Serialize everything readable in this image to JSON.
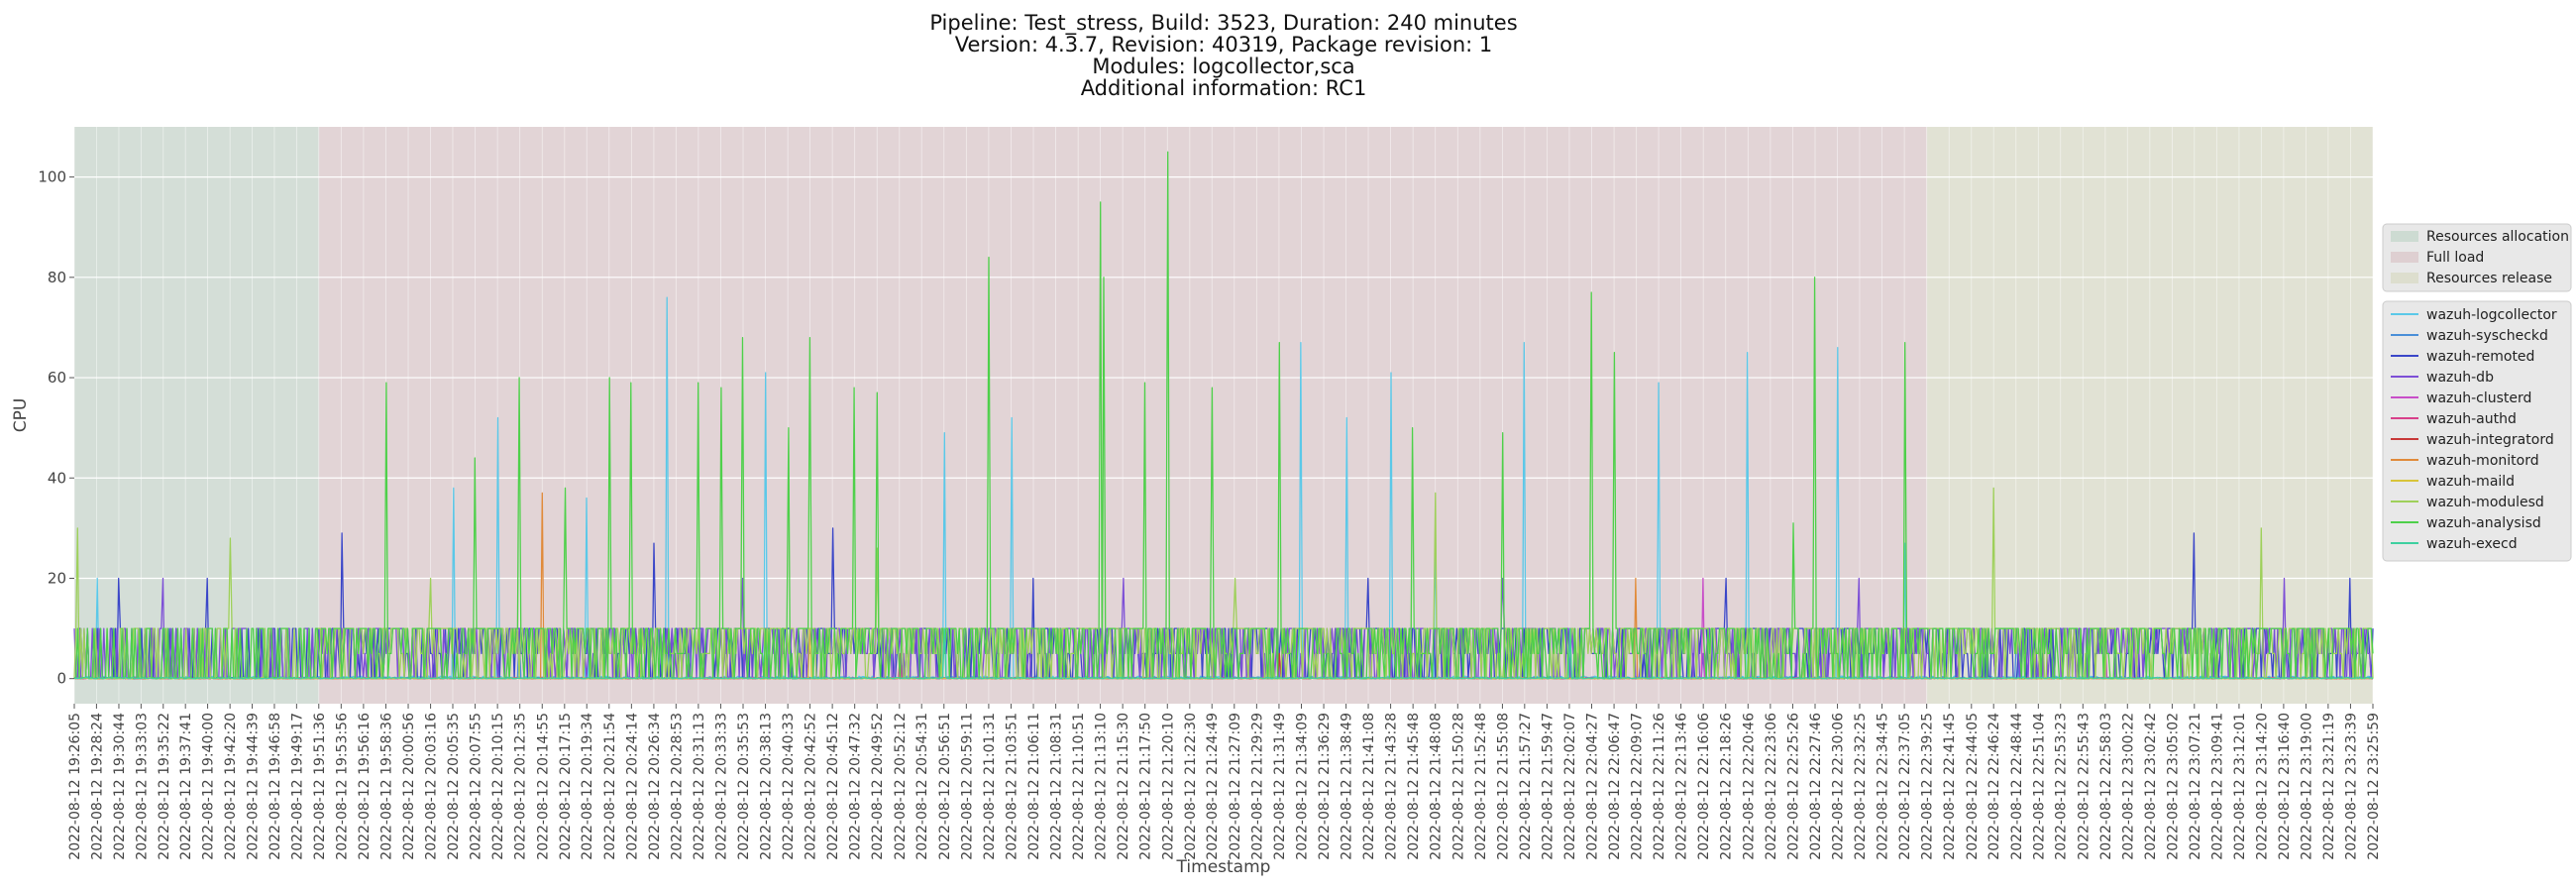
{
  "chart_data": {
    "type": "line",
    "title_lines": [
      "Pipeline: Test_stress, Build: 3523, Duration: 240 minutes",
      "Version: 4.3.7, Revision: 40319, Package revision: 1",
      "Modules: logcollector,sca",
      "Additional information: RC1"
    ],
    "xlabel": "Timestamp",
    "ylabel": "CPU",
    "ylim": [
      -5,
      110
    ],
    "yticks": [
      0,
      20,
      40,
      60,
      80,
      100
    ],
    "grid": true,
    "legend_placement": "right",
    "x_tick_labels": [
      "2022-08-12 19:26:05",
      "2022-08-12 19:28:24",
      "2022-08-12 19:30:44",
      "2022-08-12 19:33:03",
      "2022-08-12 19:35:22",
      "2022-08-12 19:37:41",
      "2022-08-12 19:40:00",
      "2022-08-12 19:42:20",
      "2022-08-12 19:44:39",
      "2022-08-12 19:46:58",
      "2022-08-12 19:49:17",
      "2022-08-12 19:51:36",
      "2022-08-12 19:53:56",
      "2022-08-12 19:56:16",
      "2022-08-12 19:58:36",
      "2022-08-12 20:00:56",
      "2022-08-12 20:03:16",
      "2022-08-12 20:05:35",
      "2022-08-12 20:07:55",
      "2022-08-12 20:10:15",
      "2022-08-12 20:12:35",
      "2022-08-12 20:14:55",
      "2022-08-12 20:17:15",
      "2022-08-12 20:19:34",
      "2022-08-12 20:21:54",
      "2022-08-12 20:24:14",
      "2022-08-12 20:26:34",
      "2022-08-12 20:28:53",
      "2022-08-12 20:31:13",
      "2022-08-12 20:33:33",
      "2022-08-12 20:35:53",
      "2022-08-12 20:38:13",
      "2022-08-12 20:40:33",
      "2022-08-12 20:42:52",
      "2022-08-12 20:45:12",
      "2022-08-12 20:47:32",
      "2022-08-12 20:49:52",
      "2022-08-12 20:52:12",
      "2022-08-12 20:54:31",
      "2022-08-12 20:56:51",
      "2022-08-12 20:59:11",
      "2022-08-12 21:01:31",
      "2022-08-12 21:03:51",
      "2022-08-12 21:06:11",
      "2022-08-12 21:08:31",
      "2022-08-12 21:10:51",
      "2022-08-12 21:13:10",
      "2022-08-12 21:15:30",
      "2022-08-12 21:17:50",
      "2022-08-12 21:20:10",
      "2022-08-12 21:22:30",
      "2022-08-12 21:24:49",
      "2022-08-12 21:27:09",
      "2022-08-12 21:29:29",
      "2022-08-12 21:31:49",
      "2022-08-12 21:34:09",
      "2022-08-12 21:36:29",
      "2022-08-12 21:38:49",
      "2022-08-12 21:41:08",
      "2022-08-12 21:43:28",
      "2022-08-12 21:45:48",
      "2022-08-12 21:48:08",
      "2022-08-12 21:50:28",
      "2022-08-12 21:52:48",
      "2022-08-12 21:55:08",
      "2022-08-12 21:57:27",
      "2022-08-12 21:59:47",
      "2022-08-12 22:02:07",
      "2022-08-12 22:04:27",
      "2022-08-12 22:06:47",
      "2022-08-12 22:09:07",
      "2022-08-12 22:11:26",
      "2022-08-12 22:13:46",
      "2022-08-12 22:16:06",
      "2022-08-12 22:18:26",
      "2022-08-12 22:20:46",
      "2022-08-12 22:23:06",
      "2022-08-12 22:25:26",
      "2022-08-12 22:27:46",
      "2022-08-12 22:30:06",
      "2022-08-12 22:32:25",
      "2022-08-12 22:34:45",
      "2022-08-12 22:37:05",
      "2022-08-12 22:39:25",
      "2022-08-12 22:41:45",
      "2022-08-12 22:44:05",
      "2022-08-12 22:46:24",
      "2022-08-12 22:48:44",
      "2022-08-12 22:51:04",
      "2022-08-12 22:53:23",
      "2022-08-12 22:55:43",
      "2022-08-12 22:58:03",
      "2022-08-12 23:00:22",
      "2022-08-12 23:02:42",
      "2022-08-12 23:05:02",
      "2022-08-12 23:07:21",
      "2022-08-12 23:09:41",
      "2022-08-12 23:12:01",
      "2022-08-12 23:14:20",
      "2022-08-12 23:16:40",
      "2022-08-12 23:19:00",
      "2022-08-12 23:21:19",
      "2022-08-12 23:23:39",
      "2022-08-12 23:25:59"
    ],
    "phases": [
      {
        "name": "Resources allocation",
        "start": "2022-08-12 19:26:05",
        "end": "2022-08-12 19:51:36",
        "color": "#b7cfbf"
      },
      {
        "name": "Full load",
        "start": "2022-08-12 19:51:36",
        "end": "2022-08-12 22:39:25",
        "color": "#d6b9bd"
      },
      {
        "name": "Resources release",
        "start": "2022-08-12 22:39:25",
        "end": "2022-08-12 23:25:59",
        "color": "#d4d6b8"
      }
    ],
    "series": [
      {
        "name": "wazuh-logcollector",
        "color": "#5bc8e8",
        "baseline": 0.5,
        "peaks": [
          [
            "2022-08-12 19:28:24",
            20
          ],
          [
            "2022-08-12 20:05:35",
            38
          ],
          [
            "2022-08-12 20:10:15",
            52
          ],
          [
            "2022-08-12 20:19:34",
            36
          ],
          [
            "2022-08-12 20:28:00",
            76
          ],
          [
            "2022-08-12 20:38:13",
            61
          ],
          [
            "2022-08-12 20:56:51",
            49
          ],
          [
            "2022-08-12 21:03:51",
            52
          ],
          [
            "2022-08-12 21:34:09",
            67
          ],
          [
            "2022-08-12 21:38:49",
            52
          ],
          [
            "2022-08-12 21:43:28",
            61
          ],
          [
            "2022-08-12 21:48:08",
            30
          ],
          [
            "2022-08-12 21:57:27",
            67
          ],
          [
            "2022-08-12 22:11:26",
            59
          ],
          [
            "2022-08-12 22:20:46",
            65
          ],
          [
            "2022-08-12 22:30:06",
            66
          ],
          [
            "2022-08-12 22:37:05",
            27
          ]
        ]
      },
      {
        "name": "wazuh-syscheckd",
        "color": "#4a8fd8",
        "baseline": 0.3,
        "peaks": [
          [
            "2022-08-12 19:33:03",
            10
          ],
          [
            "2022-08-12 20:12:35",
            10
          ],
          [
            "2022-08-12 21:20:10",
            10
          ],
          [
            "2022-08-12 22:48:44",
            10
          ]
        ]
      },
      {
        "name": "wazuh-remoted",
        "color": "#3a46c8",
        "baseline": 5,
        "peaks": [
          [
            "2022-08-12 19:30:44",
            20
          ],
          [
            "2022-08-12 19:40:00",
            20
          ],
          [
            "2022-08-12 19:46:58",
            10
          ],
          [
            "2022-08-12 19:53:56",
            29
          ],
          [
            "2022-08-12 20:26:34",
            27
          ],
          [
            "2022-08-12 20:45:12",
            30
          ],
          [
            "2022-08-12 21:06:11",
            20
          ],
          [
            "2022-08-12 21:41:08",
            20
          ],
          [
            "2022-08-12 22:18:26",
            20
          ],
          [
            "2022-08-12 23:07:21",
            29
          ],
          [
            "2022-08-12 23:23:39",
            20
          ]
        ]
      },
      {
        "name": "wazuh-db",
        "color": "#7d4fd6",
        "baseline": 5,
        "peaks": [
          [
            "2022-08-12 19:35:22",
            20
          ],
          [
            "2022-08-12 20:35:53",
            20
          ],
          [
            "2022-08-12 21:15:30",
            20
          ],
          [
            "2022-08-12 21:55:08",
            20
          ],
          [
            "2022-08-12 22:32:25",
            20
          ],
          [
            "2022-08-12 23:16:40",
            20
          ]
        ]
      },
      {
        "name": "wazuh-clusterd",
        "color": "#c84ec8",
        "baseline": 0.2,
        "peaks": [
          [
            "2022-08-12 22:16:06",
            20
          ],
          [
            "2022-08-12 22:58:03",
            10
          ]
        ]
      },
      {
        "name": "wazuh-authd",
        "color": "#d8408a",
        "baseline": 0.1,
        "peaks": [
          [
            "2022-08-12 20:52:12",
            5
          ]
        ]
      },
      {
        "name": "wazuh-integratord",
        "color": "#c83838",
        "baseline": 0.1,
        "peaks": [
          [
            "2022-08-12 21:31:49",
            5
          ]
        ]
      },
      {
        "name": "wazuh-monitord",
        "color": "#e08a3a",
        "baseline": 0.1,
        "peaks": [
          [
            "2022-08-12 20:14:55",
            37
          ],
          [
            "2022-08-12 22:09:07",
            20
          ]
        ]
      },
      {
        "name": "wazuh-maild",
        "color": "#d8c43a",
        "baseline": 0.1,
        "peaks": [
          [
            "2022-08-12 20:42:52",
            10
          ]
        ]
      },
      {
        "name": "wazuh-modulesd",
        "color": "#9ed05a",
        "baseline": 5,
        "peaks": [
          [
            "2022-08-12 19:26:30",
            30
          ],
          [
            "2022-08-12 19:42:20",
            28
          ],
          [
            "2022-08-12 20:03:16",
            20
          ],
          [
            "2022-08-12 20:49:52",
            26
          ],
          [
            "2022-08-12 21:27:09",
            20
          ],
          [
            "2022-08-12 21:48:08",
            37
          ],
          [
            "2022-08-12 22:46:24",
            38
          ],
          [
            "2022-08-12 23:14:20",
            30
          ]
        ]
      },
      {
        "name": "wazuh-analysisd",
        "color": "#4ed04a",
        "baseline": 5,
        "peaks": [
          [
            "2022-08-12 19:58:36",
            59
          ],
          [
            "2022-08-12 20:07:55",
            44
          ],
          [
            "2022-08-12 20:12:35",
            60
          ],
          [
            "2022-08-12 20:17:15",
            38
          ],
          [
            "2022-08-12 20:21:54",
            60
          ],
          [
            "2022-08-12 20:24:14",
            59
          ],
          [
            "2022-08-12 20:31:13",
            59
          ],
          [
            "2022-08-12 20:33:33",
            58
          ],
          [
            "2022-08-12 20:35:53",
            68
          ],
          [
            "2022-08-12 20:40:33",
            50
          ],
          [
            "2022-08-12 20:42:52",
            68
          ],
          [
            "2022-08-12 20:47:32",
            58
          ],
          [
            "2022-08-12 20:49:52",
            57
          ],
          [
            "2022-08-12 21:01:31",
            84
          ],
          [
            "2022-08-12 21:13:10",
            95
          ],
          [
            "2022-08-12 21:13:30",
            80
          ],
          [
            "2022-08-12 21:17:50",
            59
          ],
          [
            "2022-08-12 21:20:10",
            105
          ],
          [
            "2022-08-12 21:24:49",
            58
          ],
          [
            "2022-08-12 21:31:49",
            67
          ],
          [
            "2022-08-12 21:45:48",
            50
          ],
          [
            "2022-08-12 21:55:08",
            49
          ],
          [
            "2022-08-12 22:04:27",
            77
          ],
          [
            "2022-08-12 22:06:47",
            65
          ],
          [
            "2022-08-12 22:25:26",
            31
          ],
          [
            "2022-08-12 22:27:46",
            80
          ],
          [
            "2022-08-12 22:37:05",
            67
          ]
        ]
      },
      {
        "name": "wazuh-execd",
        "color": "#3ed0a0",
        "baseline": 0.2,
        "peaks": [
          [
            "2022-08-12 20:56:51",
            10
          ],
          [
            "2022-08-12 22:02:07",
            10
          ]
        ]
      }
    ]
  }
}
